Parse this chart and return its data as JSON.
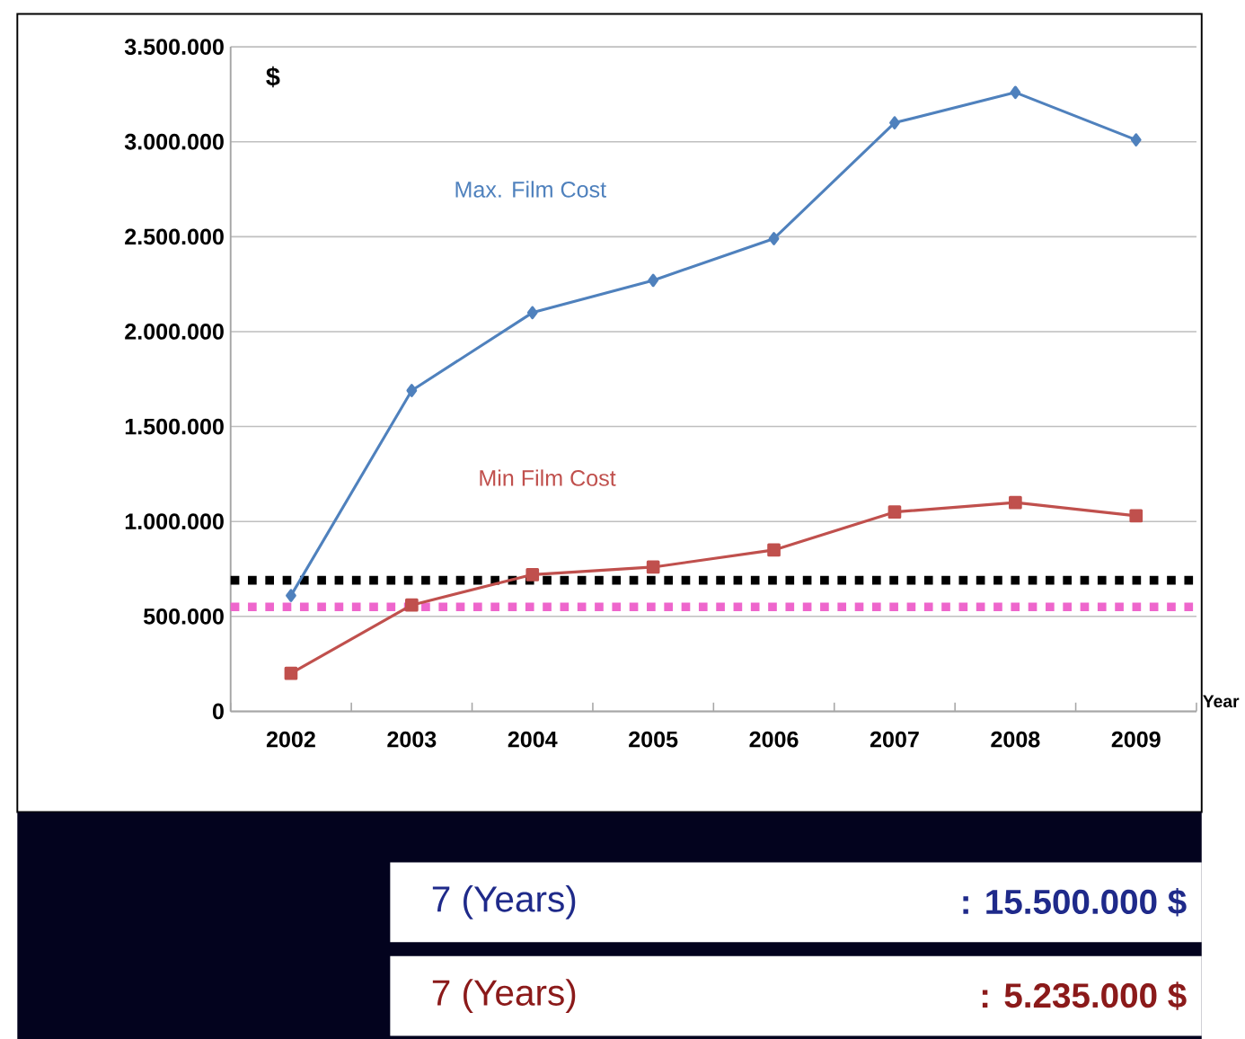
{
  "chart_data": {
    "type": "line",
    "ylabel": "$",
    "xlabel": "Year",
    "categories": [
      "2002",
      "2003",
      "2004",
      "2005",
      "2006",
      "2007",
      "2008",
      "2009"
    ],
    "series": [
      {
        "name": "Max. Film Cost",
        "color": "#4f81bd",
        "marker": "diamond",
        "values": [
          610000,
          1690000,
          2100000,
          2270000,
          2490000,
          3100000,
          3260000,
          3010000
        ]
      },
      {
        "name": "Min Film Cost",
        "color": "#c0504d",
        "marker": "square",
        "values": [
          200000,
          560000,
          720000,
          760000,
          850000,
          1050000,
          1100000,
          1030000
        ]
      }
    ],
    "ylim": [
      0,
      3500000
    ],
    "yticks": [
      {
        "value": 0,
        "label": "0"
      },
      {
        "value": 500000,
        "label": "500.000"
      },
      {
        "value": 1000000,
        "label": "1.000.000"
      },
      {
        "value": 1500000,
        "label": "1.500.000"
      },
      {
        "value": 2000000,
        "label": "2.000.000"
      },
      {
        "value": 2500000,
        "label": "2.500.000"
      },
      {
        "value": 3000000,
        "label": "3.000.000"
      },
      {
        "value": 3500000,
        "label": "3.500.000"
      }
    ],
    "grid": "y",
    "line_style": "solid",
    "ref_lines": [
      {
        "axis": "y",
        "value": 690000,
        "color": "#000000",
        "line_style": "dotted"
      },
      {
        "axis": "y",
        "value": 550000,
        "color": "#ee66cc",
        "line_style": "dotted"
      }
    ],
    "annotations": [
      "7 (Years)",
      ": 15.500.000 $",
      "7 (Years)",
      ":   5.235.000 $"
    ]
  }
}
